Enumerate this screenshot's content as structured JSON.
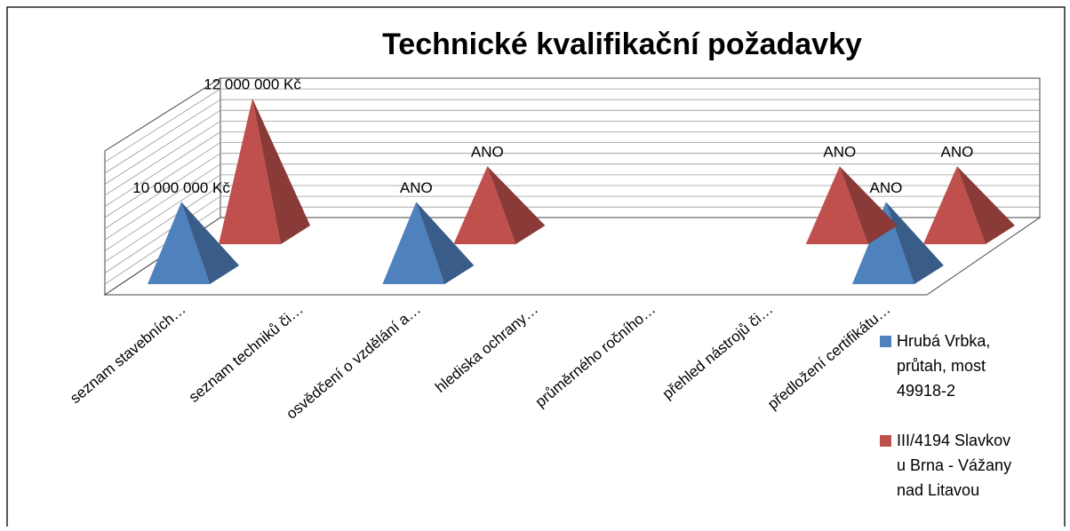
{
  "chart_data": {
    "type": "pyramid3d",
    "title": "Technické kvalifikační požadavky",
    "categories": [
      "seznam stavebních…",
      "seznam techniků či…",
      "osvědčení o vzdělání a…",
      "hlediska ochrany…",
      "průměrného ročního…",
      "přehled nástrojů či…",
      "předložení certifikátu…"
    ],
    "ylim": [
      7700000,
      12600000
    ],
    "legend": "right",
    "series": [
      {
        "name": "Hrubá Vrbka, průtah, most 49918-2",
        "color": "#4f81bd",
        "values": [
          10000000,
          null,
          10000000,
          null,
          null,
          null,
          10000000
        ],
        "value_labels": [
          "10 000 000 Kč",
          null,
          "ANO",
          null,
          null,
          null,
          "ANO"
        ]
      },
      {
        "name": "III/4194 Slavkov u Brna - Vážany nad Litavou",
        "color": "#c0504d",
        "values": [
          12000000,
          null,
          10000000,
          null,
          null,
          10000000,
          10000000
        ],
        "value_labels": [
          "12 000 000 Kč",
          null,
          "ANO",
          null,
          null,
          "ANO",
          "ANO"
        ]
      }
    ]
  }
}
